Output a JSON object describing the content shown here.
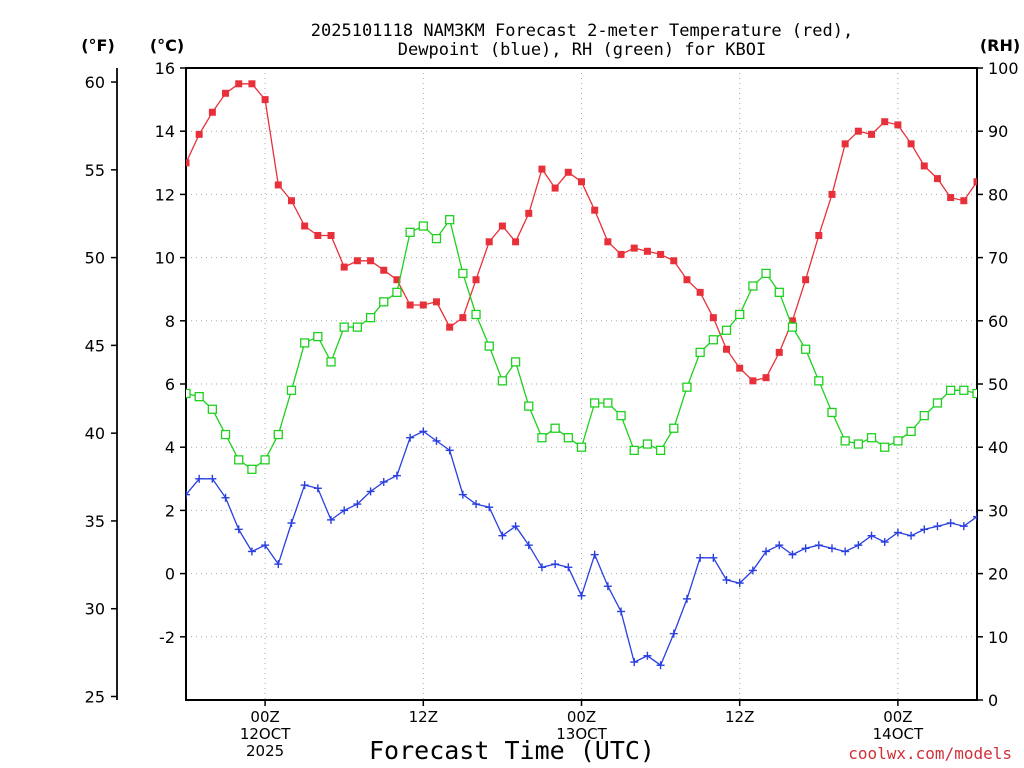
{
  "chart_data": {
    "type": "line",
    "title": "2025101118 NAM3KM Forecast 2-meter Temperature (red),",
    "subtitle": "Dewpoint (blue), RH (green) for KBOI",
    "xlabel": "Forecast Time (UTC)",
    "credit": "coolwx.com/models",
    "units": {
      "f": "(°F)",
      "c": "(°C)",
      "rh": "(RH)"
    },
    "x_hours": {
      "start": 18,
      "step": 1,
      "range": [
        18,
        78
      ]
    },
    "x_ticks": [
      {
        "hour": 24,
        "lines": [
          "00Z",
          "12OCT",
          "2025"
        ]
      },
      {
        "hour": 36,
        "lines": [
          "12Z"
        ]
      },
      {
        "hour": 48,
        "lines": [
          "00Z",
          "13OCT"
        ]
      },
      {
        "hour": 60,
        "lines": [
          "12Z"
        ]
      },
      {
        "hour": 72,
        "lines": [
          "00Z",
          "14OCT"
        ]
      }
    ],
    "ylim_c": [
      -4,
      16
    ],
    "yticks_c": [
      "-2",
      "0",
      "2",
      "4",
      "6",
      "8",
      "10",
      "12",
      "14",
      "16"
    ],
    "ylim_f": [
      24.8,
      60.8
    ],
    "yticks_f": [
      "25",
      "30",
      "35",
      "40",
      "45",
      "50",
      "55",
      "60"
    ],
    "ylim_rh": [
      0,
      100
    ],
    "yticks_rh": [
      "0",
      "10",
      "20",
      "30",
      "40",
      "50",
      "60",
      "70",
      "80",
      "90",
      "100"
    ],
    "series": [
      {
        "name": "Temperature",
        "units": "C",
        "axis": "c",
        "color": "#e8303a",
        "marker": "filled-square",
        "values": [
          13.0,
          13.9,
          14.6,
          15.2,
          15.5,
          15.5,
          15.0,
          12.3,
          11.8,
          11.0,
          10.7,
          10.7,
          9.7,
          9.9,
          9.9,
          9.6,
          9.3,
          8.5,
          8.5,
          8.6,
          7.8,
          8.1,
          9.3,
          10.5,
          11.0,
          10.5,
          11.4,
          12.8,
          12.2,
          12.7,
          12.4,
          11.5,
          10.5,
          10.1,
          10.3,
          10.2,
          10.1,
          9.9,
          9.3,
          8.9,
          8.1,
          7.1,
          6.5,
          6.1,
          6.2,
          7.0,
          8.0,
          9.3,
          10.7,
          12.0,
          13.6,
          14.0,
          13.9,
          14.3,
          14.2,
          13.6,
          12.9,
          12.5,
          11.9,
          11.8,
          12.4
        ]
      },
      {
        "name": "Dewpoint",
        "units": "C",
        "axis": "c",
        "color": "#2a3fe0",
        "marker": "plus",
        "values": [
          2.5,
          3.0,
          3.0,
          2.4,
          1.4,
          0.7,
          0.9,
          0.3,
          1.6,
          2.8,
          2.7,
          1.7,
          2.0,
          2.2,
          2.6,
          2.9,
          3.1,
          4.3,
          4.5,
          4.2,
          3.9,
          2.5,
          2.2,
          2.1,
          1.2,
          1.5,
          0.9,
          0.2,
          0.3,
          0.2,
          -0.7,
          0.6,
          -0.4,
          -1.2,
          -2.8,
          -2.6,
          -2.9,
          -1.9,
          -0.8,
          0.5,
          0.5,
          -0.2,
          -0.3,
          0.1,
          0.7,
          0.9,
          0.6,
          0.8,
          0.9,
          0.8,
          0.7,
          0.9,
          1.2,
          1.0,
          1.3,
          1.2,
          1.4,
          1.5,
          1.6,
          1.5,
          1.8
        ]
      },
      {
        "name": "Relative Humidity",
        "units": "%",
        "axis": "rh",
        "color": "#1fd01f",
        "marker": "open-square",
        "values": [
          48.5,
          48.0,
          46.0,
          42.0,
          38.0,
          36.5,
          38.0,
          42.0,
          49.0,
          56.5,
          57.5,
          53.5,
          59.0,
          59.0,
          60.5,
          63.0,
          64.5,
          74.0,
          75.0,
          73.0,
          76.0,
          67.5,
          61.0,
          56.0,
          50.5,
          53.5,
          46.5,
          41.5,
          43.0,
          41.5,
          40.0,
          47.0,
          47.0,
          45.0,
          39.5,
          40.5,
          39.5,
          43.0,
          49.5,
          55.0,
          57.0,
          58.5,
          61.0,
          65.5,
          67.5,
          64.5,
          59.0,
          55.5,
          50.5,
          45.5,
          41.0,
          40.5,
          41.5,
          40.0,
          41.0,
          42.5,
          45.0,
          47.0,
          49.0,
          49.0,
          48.5
        ]
      }
    ]
  }
}
